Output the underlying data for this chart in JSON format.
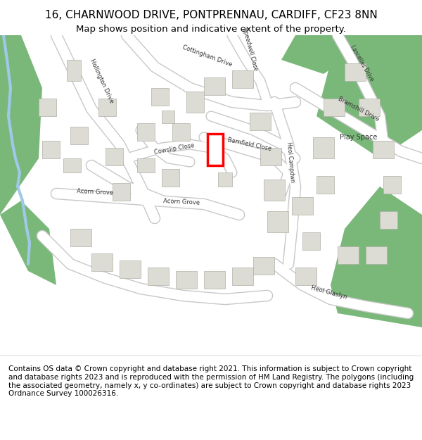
{
  "title_line1": "16, CHARNWOOD DRIVE, PONTPRENNAU, CARDIFF, CF23 8NN",
  "title_line2": "Map shows position and indicative extent of the property.",
  "footer_text": "Contains OS data © Crown copyright and database right 2021. This information is subject to Crown copyright and database rights 2023 and is reproduced with the permission of HM Land Registry. The polygons (including the associated geometry, namely x, y co-ordinates) are subject to Crown copyright and database rights 2023 Ordnance Survey 100026316.",
  "bg_color": "#f5f5f0",
  "map_bg": "#f0f0ea",
  "road_color": "#ffffff",
  "road_stroke": "#cccccc",
  "building_fill": "#dcdcd4",
  "building_stroke": "#b0b0a8",
  "green_fill": "#7ab87a",
  "green_dark": "#5a9a5a",
  "water_color": "#a0c8e8",
  "highlight_color": "#ff0000",
  "header_bg": "#ffffff",
  "footer_bg": "#ffffff",
  "title_fontsize": 11,
  "subtitle_fontsize": 9.5,
  "footer_fontsize": 7.5
}
